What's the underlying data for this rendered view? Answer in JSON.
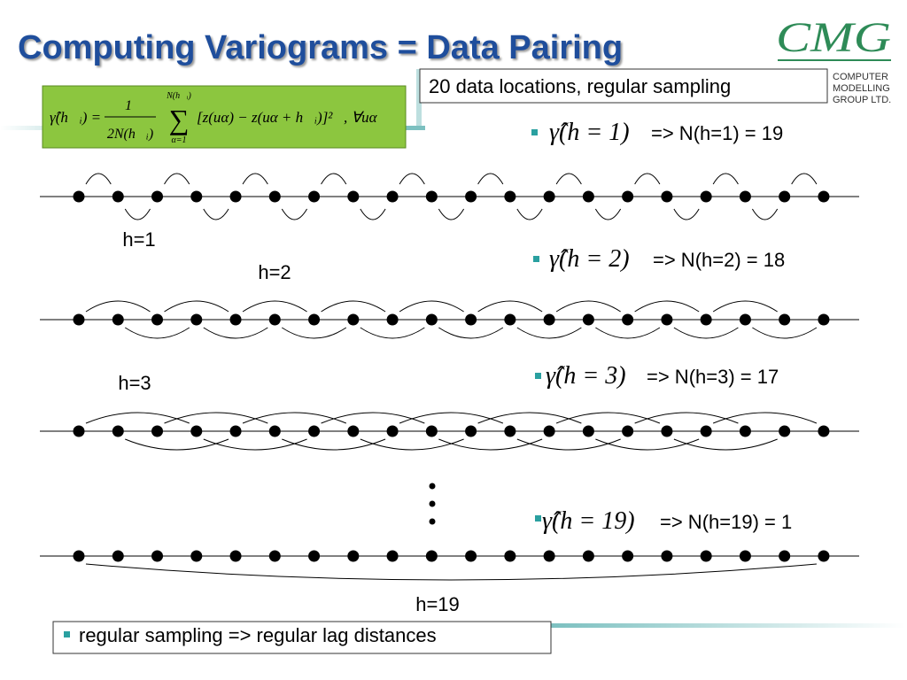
{
  "title": "Computing Variograms = Data Pairing",
  "logo": {
    "mark": "CMG",
    "name_lines": [
      "COMPUTER",
      "MODELLING",
      "GROUP LTD."
    ]
  },
  "info_box": "20 data locations, regular sampling",
  "formula": {
    "lhs": "γ̂(h⃗ᵢ) =",
    "numerator": "1",
    "denominator": "2N(h⃗ᵢ)",
    "sum_upper": "N(h⃗ᵢ)",
    "sum_symbol": "∑",
    "sum_lower": "α=1",
    "summand": "[z(uα) − z(uα + h⃗ᵢ)]²",
    "quantifier": ", ∀uα"
  },
  "rows": [
    {
      "estimator": "γ̂(h = 1)",
      "pairs": "=>  N(h=1) = 19",
      "lag_label": "h=1"
    },
    {
      "estimator": "γ̂(h = 2)",
      "pairs": "=> N(h=2) = 18",
      "lag_label": "h=2"
    },
    {
      "estimator": "γ̂(h = 3)",
      "pairs": "=> N(h=3) = 17",
      "lag_label": "h=3"
    },
    {
      "estimator": "γ̂(h = 19)",
      "pairs": "=> N(h=19) = 1",
      "lag_label": "h=19"
    }
  ],
  "footer_note": "regular sampling => regular lag distances"
}
